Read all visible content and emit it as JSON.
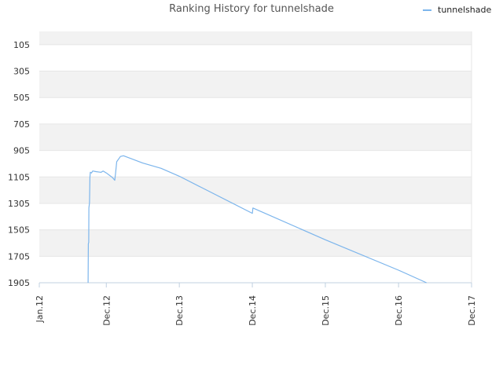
{
  "chart_data": {
    "type": "line",
    "title": "Ranking History for tunnelshade",
    "xlabel": "",
    "ylabel": "",
    "legend_position": "top-right",
    "y_axis_reversed": true,
    "ylim": [
      5,
      1905
    ],
    "y_ticks": [
      105,
      305,
      505,
      705,
      905,
      1105,
      1305,
      1505,
      1705,
      1905
    ],
    "y_tick_labels": [
      "105",
      "305",
      "505",
      "705",
      "905",
      "1105",
      "1305",
      "1505",
      "1705",
      "1905"
    ],
    "x_ticks": [
      "2012-01",
      "2012-12",
      "2013-12",
      "2014-12",
      "2015-12",
      "2016-12",
      "2017-12"
    ],
    "x_tick_labels": [
      "Jan.12",
      "Dec.12",
      "Dec.13",
      "Dec.14",
      "Dec.15",
      "Dec.16",
      "Dec.17"
    ],
    "grid": true,
    "colors": {
      "series": "#7cb5ec",
      "band": "#f2f2f2",
      "grid": "#e6e6e6"
    },
    "series": [
      {
        "name": "tunnelshade",
        "points": [
          [
            "2012-09-01",
            1905
          ],
          [
            "2012-09-02",
            1610
          ],
          [
            "2012-09-04",
            1600
          ],
          [
            "2012-09-05",
            1340
          ],
          [
            "2012-09-08",
            1300
          ],
          [
            "2012-09-10",
            1110
          ],
          [
            "2012-09-12",
            1070
          ],
          [
            "2012-09-18",
            1075
          ],
          [
            "2012-09-24",
            1060
          ],
          [
            "2012-10-10",
            1065
          ],
          [
            "2012-11-05",
            1070
          ],
          [
            "2012-11-15",
            1060
          ],
          [
            "2012-12-01",
            1075
          ],
          [
            "2013-01-01",
            1110
          ],
          [
            "2013-01-12",
            1130
          ],
          [
            "2013-01-16",
            1080
          ],
          [
            "2013-01-22",
            990
          ],
          [
            "2013-02-10",
            950
          ],
          [
            "2013-02-25",
            945
          ],
          [
            "2013-04-01",
            965
          ],
          [
            "2013-06-01",
            1000
          ],
          [
            "2013-09-01",
            1040
          ],
          [
            "2013-12-01",
            1100
          ],
          [
            "2014-12-01",
            1380
          ],
          [
            "2014-12-04",
            1340
          ],
          [
            "2015-12-01",
            1580
          ],
          [
            "2016-12-01",
            1810
          ],
          [
            "2017-04-20",
            1905
          ]
        ]
      }
    ]
  }
}
